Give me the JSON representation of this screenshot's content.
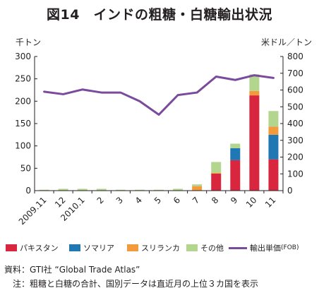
{
  "title": "図14　インドの粗糖・白糖輸出状況",
  "left_unit": "千トン",
  "right_unit": "米ドル／トン",
  "legend": {
    "pakistan": "パキスタン",
    "somalia": "ソマリア",
    "srilanka": "スリランカ",
    "other": "その他",
    "price": "輸出単価",
    "price_suffix": "(FOB)"
  },
  "notes": {
    "source": "資料：GTI社 “Global Trade Atlas”",
    "note": "　注：粗糖と白糖の合計、国別データは直近月の上位３カ国を表示"
  },
  "colors": {
    "pakistan": "#d7263d",
    "somalia": "#1f78b4",
    "srilanka": "#f39a3c",
    "other": "#b3d68e",
    "price": "#7a4a9c"
  },
  "chart_data": {
    "type": "bar",
    "categories": [
      "2009.11",
      "12",
      "2010.1",
      "2",
      "3",
      "4",
      "5",
      "6",
      "7",
      "8",
      "9",
      "10",
      "11"
    ],
    "series": [
      {
        "name": "パキスタン",
        "values": [
          0,
          0,
          0,
          0,
          0,
          0,
          0,
          0,
          0,
          38,
          68,
          213,
          70
        ]
      },
      {
        "name": "ソマリア",
        "values": [
          0,
          0,
          0,
          0,
          0,
          0,
          0,
          0,
          0,
          0,
          27,
          0,
          55
        ]
      },
      {
        "name": "スリランカ",
        "values": [
          0,
          0,
          0,
          0,
          0,
          0,
          0,
          0,
          10,
          2,
          0,
          10,
          18
        ]
      },
      {
        "name": "その他",
        "values": [
          2,
          4,
          4,
          4,
          2,
          2,
          2,
          4,
          4,
          24,
          10,
          37,
          35
        ]
      },
      {
        "name": "輸出単価",
        "axis": "right",
        "type": "line",
        "values": [
          590,
          575,
          603,
          585,
          585,
          533,
          453,
          570,
          585,
          680,
          660,
          688,
          672
        ]
      }
    ],
    "left_axis": {
      "unit": "千トン",
      "ylim": [
        0,
        300
      ],
      "ticks": [
        0,
        50,
        100,
        150,
        200,
        250,
        300
      ]
    },
    "right_axis": {
      "unit": "米ドル／トン",
      "ylim": [
        0,
        800
      ],
      "ticks": [
        0,
        100,
        200,
        300,
        400,
        500,
        600,
        700,
        800
      ]
    },
    "grid": false,
    "legend_position": "bottom"
  }
}
